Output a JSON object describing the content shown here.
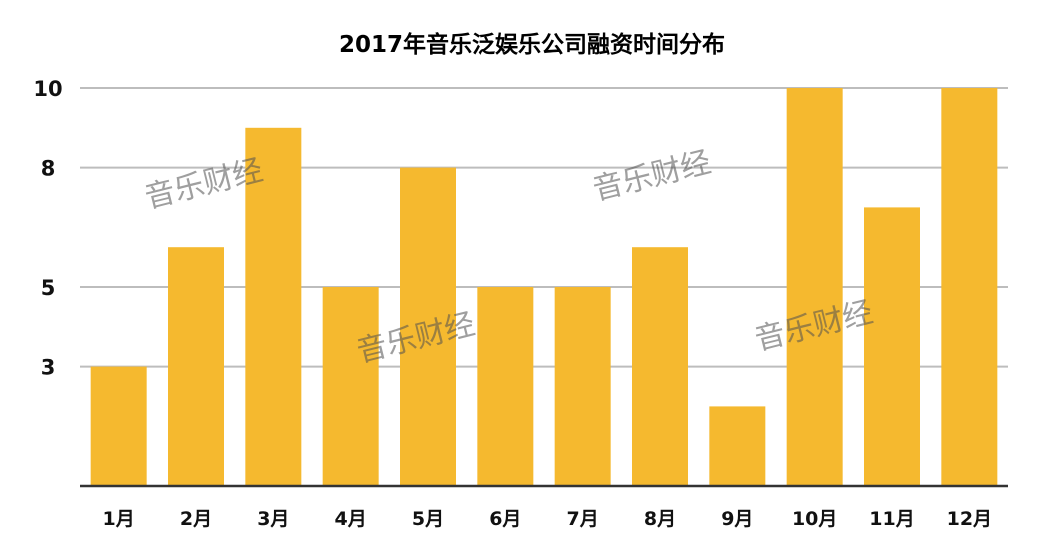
{
  "chart_data": {
    "type": "bar",
    "title": "2017年音乐泛娱乐公司融资时间分布",
    "categories": [
      "1月",
      "2月",
      "3月",
      "4月",
      "5月",
      "6月",
      "7月",
      "8月",
      "9月",
      "10月",
      "11月",
      "12月"
    ],
    "values": [
      3,
      6,
      9,
      5,
      8,
      5,
      5,
      6,
      2,
      10,
      7,
      10
    ],
    "y_ticks": [
      3,
      5,
      8,
      10
    ],
    "ylim": [
      0,
      10
    ],
    "xlabel": "",
    "ylabel": "",
    "grid": true,
    "legend": "none",
    "bar_color": "#F5B92F"
  },
  "watermark": "音乐财经"
}
